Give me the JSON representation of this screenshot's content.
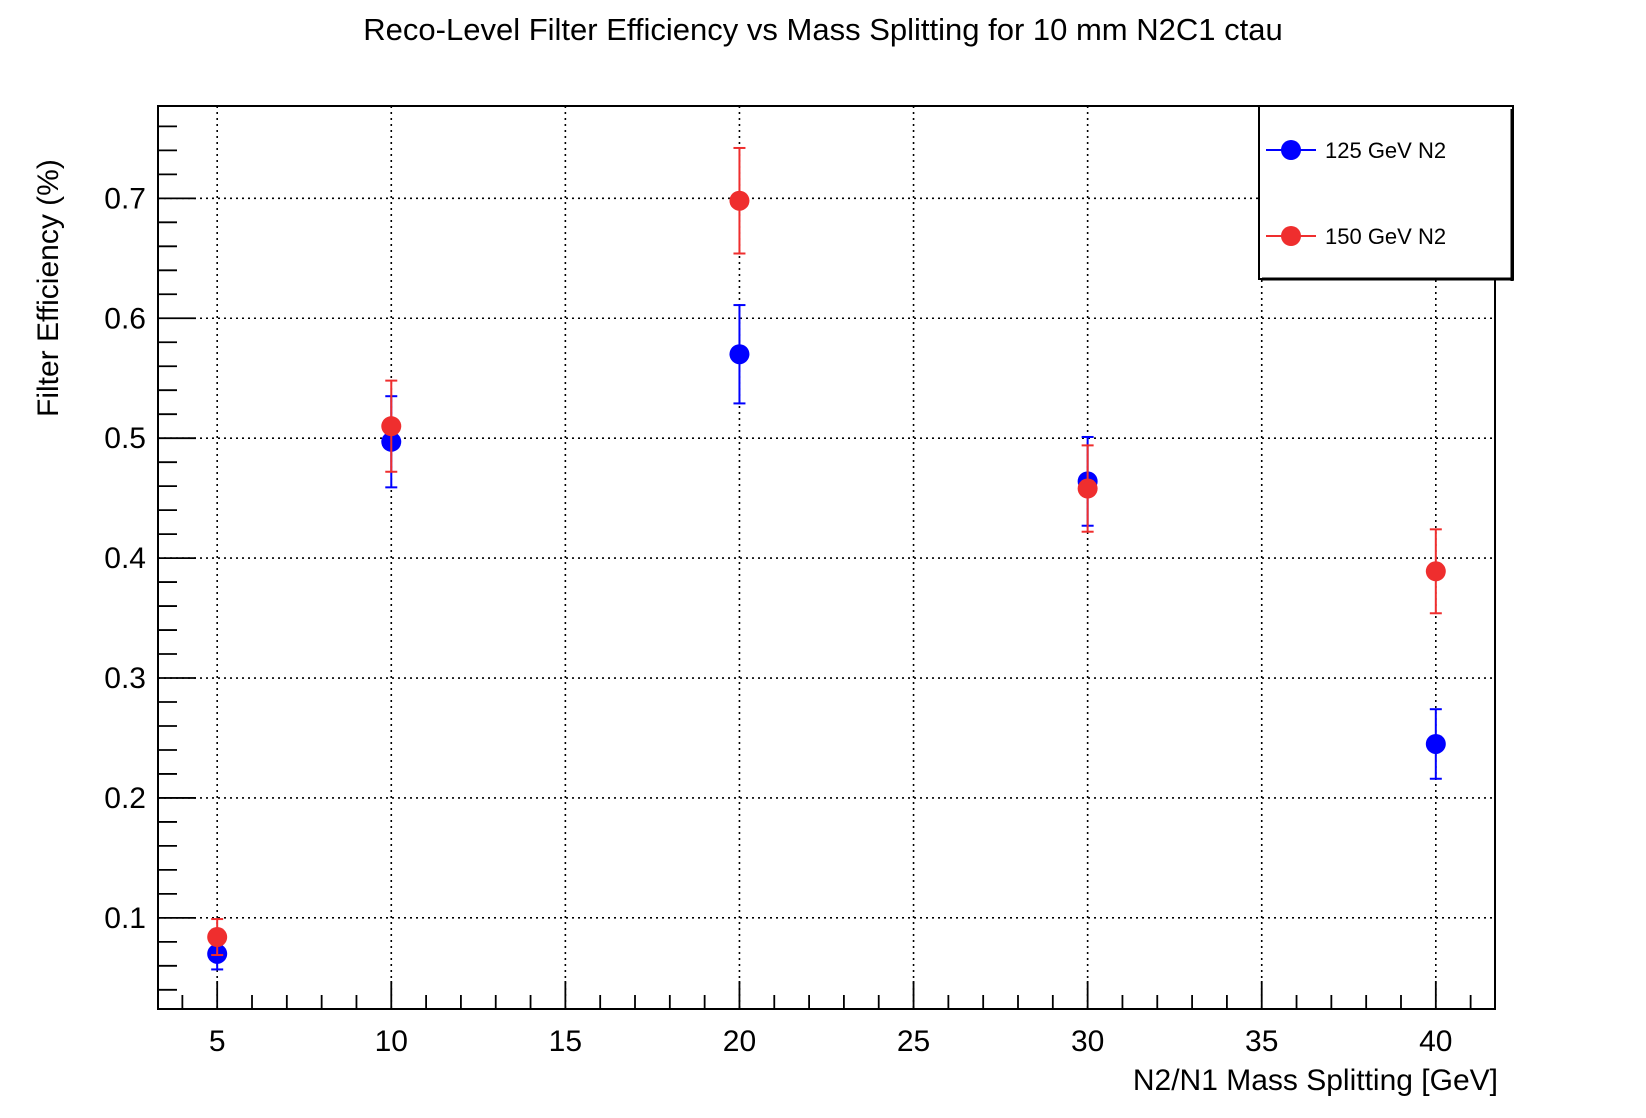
{
  "chart_data": {
    "type": "scatter",
    "title": "Reco-Level Filter Efficiency vs Mass Splitting for 10 mm N2C1 ctau",
    "xlabel": "N2/N1 Mass Splitting [GeV]",
    "ylabel": "Filter Efficiency (%)",
    "xlim": [
      3.3,
      41.7
    ],
    "ylim": [
      0.024,
      0.777
    ],
    "xticks": [
      5,
      10,
      15,
      20,
      25,
      30,
      35,
      40
    ],
    "xtick_labels": [
      "5",
      "10",
      "15",
      "20",
      "25",
      "30",
      "35",
      "40"
    ],
    "yticks": [
      0.1,
      0.2,
      0.3,
      0.4,
      0.5,
      0.6,
      0.7
    ],
    "ytick_labels": [
      "0.1",
      "0.2",
      "0.3",
      "0.4",
      "0.5",
      "0.6",
      "0.7"
    ],
    "grid": true,
    "legend_position": "top-right",
    "series": [
      {
        "name": "125 GeV N2",
        "color": "#0000ff",
        "x": [
          5,
          10,
          20,
          30,
          40
        ],
        "y": [
          0.07,
          0.497,
          0.57,
          0.464,
          0.245
        ],
        "yerr": [
          0.013,
          0.038,
          0.041,
          0.037,
          0.029
        ]
      },
      {
        "name": "150 GeV N2",
        "color": "#ef2e2e",
        "x": [
          5,
          10,
          20,
          30,
          40
        ],
        "y": [
          0.084,
          0.51,
          0.698,
          0.458,
          0.389
        ],
        "yerr": [
          0.015,
          0.038,
          0.044,
          0.036,
          0.035
        ]
      }
    ]
  }
}
